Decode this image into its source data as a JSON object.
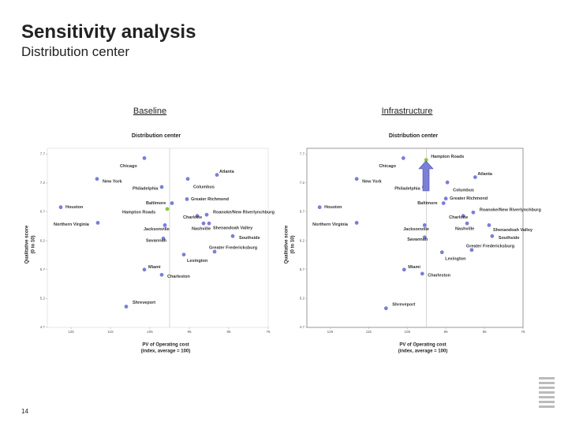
{
  "slide": {
    "title": "Sensitivity analysis",
    "subtitle": "Distribution center",
    "page_number": "14"
  },
  "chart_data": [
    {
      "type": "scatter",
      "heading": "Baseline",
      "title": "Distribution center",
      "x_label": [
        "PV of Operating cost",
        "(index, average = 100)"
      ],
      "y_label": [
        "Qualitative score",
        "(0 to 10)"
      ],
      "labels": [
        "Chicago",
        "New York",
        "Atlanta",
        "Philadelphia",
        "Columbus",
        "Houston",
        "Baltimore",
        "Greater Richmond",
        "Hampton Roads",
        "Roanoke/New Riverlynchburg",
        "Charlotte",
        "Northern Virginia",
        "Jacksonville",
        "Nashville",
        "Shenandoah Valley",
        "Southside",
        "Savannah",
        "Greater Fredericksburg",
        "Lexington",
        "Miami",
        "Charleston",
        "Shreveport"
      ],
      "x": [
        106.4,
        118.4,
        88,
        102,
        95.4,
        127.6,
        99.4,
        95.6,
        100.6,
        90.6,
        93,
        118.2,
        101.2,
        91.4,
        90,
        84,
        101.6,
        88.6,
        96.4,
        106.4,
        102,
        111
      ],
      "values": [
        7.63,
        7.27,
        7.34,
        7.13,
        7.27,
        6.78,
        6.85,
        6.92,
        6.75,
        6.65,
        6.63,
        6.51,
        6.47,
        6.5,
        6.5,
        6.28,
        6.24,
        6.01,
        5.96,
        5.7,
        5.61,
        5.06
      ],
      "colors": [
        "#7b7fd6",
        "#7b7fd6",
        "#7b7fd6",
        "#7b7fd6",
        "#7b7fd6",
        "#7b7fd6",
        "#7b7fd6",
        "#7b7fd6",
        "#8cc63f",
        "#7b7fd6",
        "#7b7fd6",
        "#7b7fd6",
        "#7b7fd6",
        "#7b7fd6",
        "#7b7fd6",
        "#7b7fd6",
        "#7b7fd6",
        "#7b7fd6",
        "#7b7fd6",
        "#7b7fd6",
        "#7b7fd6",
        "#7b7fd6"
      ],
      "xlim": [
        131,
        75
      ],
      "xticks": [
        125,
        115,
        105,
        95,
        85,
        75
      ],
      "ylim": [
        4.7,
        7.8
      ],
      "yticks": [
        7.7,
        7.2,
        6.7,
        6.2,
        5.7,
        5.2,
        4.7
      ],
      "reference_x": 100
    },
    {
      "type": "scatter",
      "heading": "Infrastructure",
      "title": "Distribution center",
      "x_label": [
        "PV of Operating cost",
        "(index, average = 100)"
      ],
      "y_label": [
        "Qualitative score",
        "(0 to 10)"
      ],
      "labels": [
        "Chicago",
        "New York",
        "Atlanta",
        "Philadelphia",
        "Columbus",
        "Houston",
        "Baltimore",
        "Greater Richmond",
        "Hampton Roads",
        "Roanoke/New Riverlynchburg",
        "Charlotte",
        "Northern Virginia",
        "Jacksonville",
        "Nashville",
        "Shenandoah Valley",
        "Southside",
        "Savannah",
        "Greater Fredericksburg",
        "Lexington",
        "Miami",
        "Charleston",
        "Shreveport"
      ],
      "x": [
        106,
        118.1,
        87.4,
        100.7,
        94.6,
        127.7,
        95.6,
        95,
        100.1,
        87.9,
        90.5,
        118.1,
        100.5,
        89.5,
        83.8,
        83,
        100.5,
        88.3,
        96,
        105.8,
        101.1,
        110.5
      ],
      "values": [
        7.63,
        7.27,
        7.3,
        7.13,
        7.21,
        6.78,
        6.85,
        6.93,
        7.6,
        6.69,
        6.63,
        6.51,
        6.47,
        6.5,
        6.47,
        6.28,
        6.26,
        6.04,
        6.0,
        5.7,
        5.63,
        5.03
      ],
      "colors": [
        "#7b7fd6",
        "#7b7fd6",
        "#7b7fd6",
        "#7b7fd6",
        "#7b7fd6",
        "#7b7fd6",
        "#7b7fd6",
        "#7b7fd6",
        "#8cc63f",
        "#7b7fd6",
        "#7b7fd6",
        "#7b7fd6",
        "#7b7fd6",
        "#7b7fd6",
        "#7b7fd6",
        "#7b7fd6",
        "#7b7fd6",
        "#7b7fd6",
        "#7b7fd6",
        "#7b7fd6",
        "#7b7fd6",
        "#7b7fd6"
      ],
      "xlim": [
        131,
        75
      ],
      "xticks": [
        125,
        115,
        105,
        95,
        85,
        75
      ],
      "ylim": [
        4.7,
        7.8
      ],
      "yticks": [
        7.7,
        7.2,
        6.7,
        6.2,
        5.7,
        5.2,
        4.7
      ],
      "reference_x": 100
    }
  ]
}
